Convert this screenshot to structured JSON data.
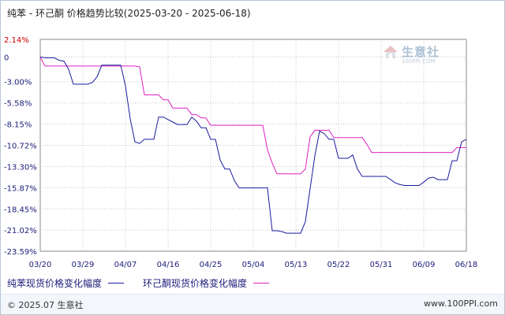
{
  "title": "纯苯 - 环己酮 价格趋势比较(2025-03-20 - 2025-06-18)",
  "watermark": {
    "text": "生意社",
    "sub": "100PPI.COM"
  },
  "footer": {
    "copyright": "© 2025.07 生意社",
    "url": "www.100PPI.com"
  },
  "colors": {
    "series1": "#1a1a9e",
    "series2": "#e020c0",
    "grid": "#c8c8c8",
    "ytick_positive": "#cc0000",
    "ytick_other": "#1c1c7a"
  },
  "chart_data": {
    "type": "line",
    "title": "纯苯 - 环己酮 价格趋势比较(2025-03-20 - 2025-06-18)",
    "xlabel": "",
    "ylabel": "",
    "ylim": [
      -23.59,
      2.14
    ],
    "yticks": [
      2.14,
      0,
      -3.0,
      -5.58,
      -8.15,
      -10.72,
      -13.3,
      -15.87,
      -18.45,
      -21.02,
      -23.59
    ],
    "ytick_labels": [
      "2.14%",
      "0",
      "-3.00%",
      "-5.58%",
      "-8.15%",
      "-10.72%",
      "-13.30%",
      "-15.87%",
      "-18.45%",
      "-21.02%",
      "-23.59%"
    ],
    "x_range": [
      0,
      90
    ],
    "xticks": [
      0,
      9,
      18,
      27,
      36,
      45,
      54,
      63,
      72,
      81,
      90
    ],
    "xtick_labels": [
      "03/20",
      "03/29",
      "04/07",
      "04/16",
      "04/25",
      "05/04",
      "05/13",
      "05/22",
      "05/31",
      "06/09",
      "06/18"
    ],
    "grid": true,
    "legend_position": "bottom",
    "series": [
      {
        "name": "纯苯现货价格变化幅度",
        "x": [
          0,
          1,
          3,
          4,
          5,
          6,
          7,
          8,
          9,
          10,
          11,
          12,
          13,
          14,
          15,
          17,
          18,
          19,
          20,
          21,
          22,
          23,
          24,
          25,
          26,
          28,
          29,
          30,
          31,
          32,
          33,
          34,
          35,
          36,
          37,
          38,
          39,
          40,
          41,
          42,
          43,
          44,
          45,
          46,
          47,
          48,
          49,
          50,
          51,
          52,
          53,
          54,
          55,
          56,
          57,
          58,
          59,
          60,
          61,
          62,
          63,
          64,
          65,
          66,
          67,
          68,
          69,
          70,
          71,
          72,
          73,
          74,
          75,
          76,
          77,
          78,
          79,
          80,
          81,
          82,
          83,
          84,
          85,
          86,
          87,
          88,
          89,
          90
        ],
        "values": [
          0,
          -0.1,
          -0.1,
          -0.4,
          -0.5,
          -1.5,
          -3.3,
          -3.3,
          -3.3,
          -3.3,
          -3.1,
          -2.4,
          -1.0,
          -1.0,
          -1.0,
          -1.0,
          -3.5,
          -7.5,
          -10.3,
          -10.5,
          -10.0,
          -10.0,
          -10.0,
          -7.3,
          -7.3,
          -7.9,
          -8.2,
          -8.2,
          -8.2,
          -7.3,
          -7.8,
          -8.6,
          -8.6,
          -10.0,
          -10.0,
          -12.5,
          -13.6,
          -13.6,
          -15.0,
          -15.9,
          -15.9,
          -15.9,
          -15.9,
          -15.9,
          -15.9,
          -15.9,
          -21.1,
          -21.1,
          -21.2,
          -21.4,
          -21.4,
          -21.4,
          -21.4,
          -20.0,
          -16.0,
          -12.0,
          -9.0,
          -9.3,
          -10.0,
          -10.0,
          -12.3,
          -12.3,
          -12.3,
          -11.9,
          -13.6,
          -14.5,
          -14.5,
          -14.5,
          -14.5,
          -14.5,
          -14.5,
          -14.9,
          -15.3,
          -15.5,
          -15.6,
          -15.6,
          -15.6,
          -15.6,
          -15.2,
          -14.7,
          -14.6,
          -14.9,
          -14.9,
          -14.9,
          -12.6,
          -12.6,
          -10.3,
          -10.0
        ],
        "values_tail_note": ""
      },
      {
        "name": "环己酮现货价格变化幅度",
        "x": [
          0,
          1,
          5,
          10,
          15,
          20,
          21,
          22,
          23,
          24,
          25,
          26,
          27,
          28,
          30,
          31,
          32,
          33,
          34,
          35,
          36,
          40,
          45,
          46,
          47,
          48,
          49,
          50,
          51,
          52,
          53,
          54,
          55,
          56,
          57,
          58,
          59,
          60,
          61,
          62,
          63,
          64,
          65,
          66,
          67,
          68,
          69,
          70,
          75,
          80,
          85,
          86,
          87,
          88,
          89,
          90
        ],
        "values": [
          0,
          -1.1,
          -1.1,
          -1.1,
          -1.1,
          -1.1,
          -1.2,
          -4.6,
          -4.6,
          -4.6,
          -4.6,
          -5.2,
          -5.2,
          -6.2,
          -6.2,
          -6.2,
          -7.0,
          -7.0,
          -7.4,
          -7.4,
          -8.3,
          -8.3,
          -8.3,
          -8.3,
          -8.3,
          -11.3,
          -12.9,
          -14.2,
          -14.2,
          -14.2,
          -14.2,
          -14.2,
          -14.2,
          -13.6,
          -9.7,
          -8.9,
          -8.9,
          -8.9,
          -8.9,
          -9.8,
          -9.8,
          -9.8,
          -9.8,
          -9.8,
          -9.8,
          -9.8,
          -10.6,
          -11.6,
          -11.6,
          -11.6,
          -11.6,
          -11.6,
          -11.6,
          -11.0,
          -11.0,
          -11.0
        ]
      }
    ]
  }
}
